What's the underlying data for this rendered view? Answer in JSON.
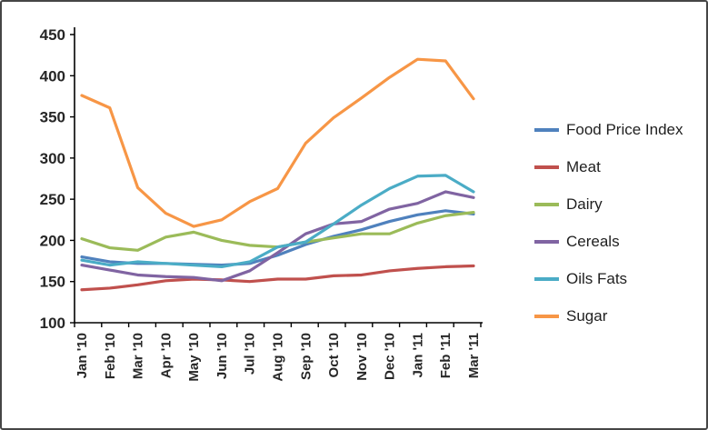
{
  "chart_data": {
    "type": "line",
    "title": "",
    "xlabel": "",
    "ylabel": "",
    "ylim": [
      100,
      450
    ],
    "ytick_step": 50,
    "grid": false,
    "legend_position": "right",
    "categories": [
      "Jan '10",
      "Feb '10",
      "Mar '10",
      "Apr '10",
      "May '10",
      "Jun '10",
      "Jul '10",
      "Aug '10",
      "Sep '10",
      "Oct '10",
      "Nov '10",
      "Dec '10",
      "Jan '11",
      "Feb '11",
      "Mar '11"
    ],
    "series": [
      {
        "name": "Food Price Index",
        "color": "#4F81BD",
        "values": [
          180,
          174,
          172,
          172,
          171,
          170,
          172,
          182,
          195,
          205,
          213,
          223,
          231,
          236,
          232
        ]
      },
      {
        "name": "Meat",
        "color": "#C0504D",
        "values": [
          140,
          142,
          146,
          151,
          153,
          152,
          150,
          153,
          153,
          157,
          158,
          163,
          166,
          168,
          169
        ]
      },
      {
        "name": "Dairy",
        "color": "#9BBB59",
        "values": [
          202,
          191,
          188,
          204,
          210,
          200,
          194,
          192,
          198,
          203,
          208,
          208,
          221,
          230,
          234
        ]
      },
      {
        "name": "Cereals",
        "color": "#8064A2",
        "values": [
          170,
          164,
          158,
          156,
          155,
          151,
          163,
          185,
          208,
          220,
          223,
          238,
          245,
          259,
          252
        ]
      },
      {
        "name": "Oils Fats",
        "color": "#4BACC6",
        "values": [
          176,
          170,
          174,
          172,
          170,
          168,
          174,
          192,
          198,
          220,
          243,
          263,
          278,
          279,
          259
        ]
      },
      {
        "name": "Sugar",
        "color": "#F79646",
        "values": [
          376,
          361,
          264,
          233,
          217,
          225,
          247,
          263,
          318,
          349,
          373,
          398,
          420,
          418,
          372
        ]
      }
    ]
  },
  "axis": {
    "tick_color": "#000000",
    "label_color": "#262626"
  }
}
